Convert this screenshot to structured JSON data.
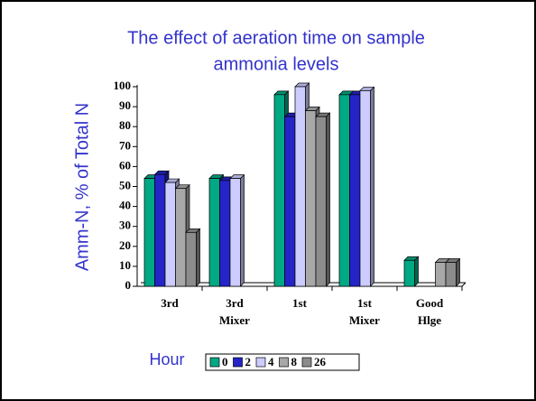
{
  "chart_data": {
    "type": "bar3d",
    "title": [
      "The effect of aeration time on sample",
      "ammonia levels"
    ],
    "y_label": "Amm-N, % of Total N",
    "legend_title": "Hour",
    "categories": [
      "3rd",
      "3rd\nMixer",
      "1st",
      "1st\nMixer",
      "Good\nHlge"
    ],
    "series": [
      {
        "name": "0",
        "color": "#00a884",
        "values": [
          54,
          54,
          96,
          96,
          13
        ]
      },
      {
        "name": "2",
        "color": "#2424c8",
        "values": [
          56,
          53,
          85,
          96,
          null
        ]
      },
      {
        "name": "4",
        "color": "#ccccff",
        "values": [
          52,
          54,
          100,
          98,
          null
        ]
      },
      {
        "name": "8",
        "color": "#a8a8a8",
        "values": [
          49,
          null,
          88,
          null,
          12
        ]
      },
      {
        "name": "26",
        "color": "#8c8c8c",
        "values": [
          27,
          null,
          85,
          null,
          12
        ]
      }
    ],
    "ylim": [
      0,
      100
    ],
    "yticks": [
      0,
      10,
      20,
      30,
      40,
      50,
      60,
      70,
      80,
      90,
      100
    ]
  }
}
